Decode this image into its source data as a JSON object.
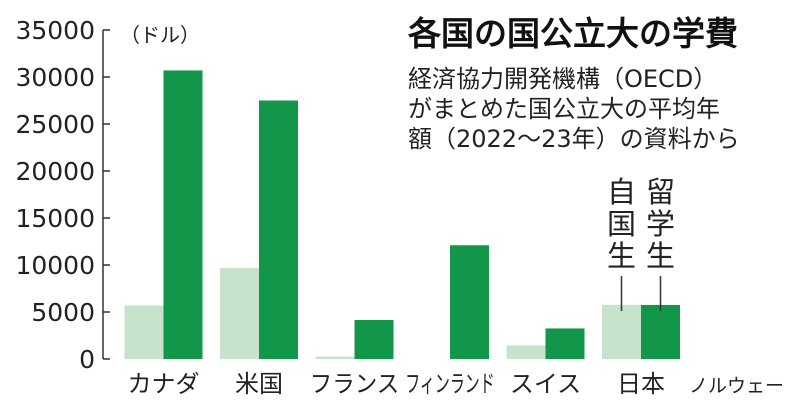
{
  "chart_data": {
    "type": "bar",
    "title": "各国の国公立大の学費",
    "subtitle_lines": [
      "経済協力開発機構（OECD）",
      "がまとめた国公立大の平均年",
      "額（2022〜23年）の資料から"
    ],
    "unit_label": "（ドル）",
    "categories": [
      "カナダ",
      "米国",
      "フランス",
      "フィンランド",
      "スイス",
      "日本",
      "ノルウェー"
    ],
    "series": [
      {
        "name": "自国生",
        "values": [
          5700,
          9700,
          250,
          0,
          1450,
          5750,
          0
        ]
      },
      {
        "name": "留学生",
        "values": [
          30700,
          27500,
          4150,
          12100,
          3250,
          5750,
          0
        ]
      }
    ],
    "ylim": [
      0,
      35000
    ],
    "yticks": [
      0,
      5000,
      10000,
      15000,
      20000,
      25000,
      30000,
      35000
    ],
    "colors": {
      "domestic": "#c8e3cc",
      "international": "#12964a",
      "axis": "#333333"
    },
    "legend_placement": "above-japan"
  }
}
